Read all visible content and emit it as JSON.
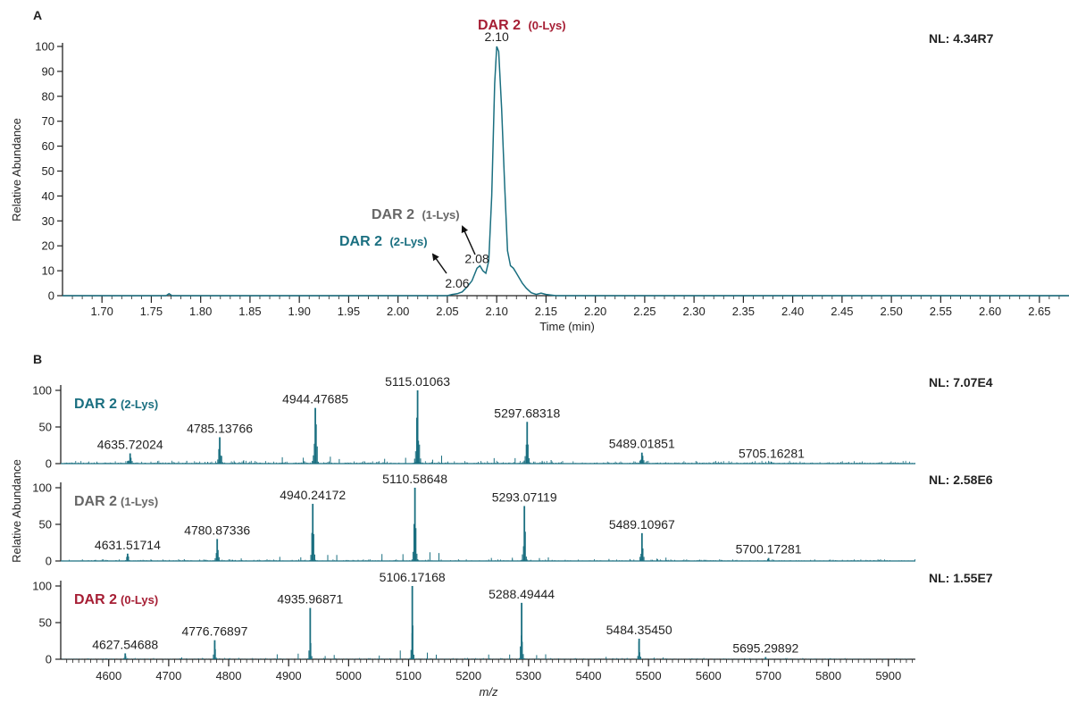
{
  "colors": {
    "teal": "#1a6f80",
    "dark_red": "#a61e34",
    "gray": "#666666",
    "axis": "#222222"
  },
  "panel_a": {
    "label": "A",
    "nl": "NL: 4.34R7",
    "chart_data": {
      "type": "line",
      "xlabel": "Time (min)",
      "ylabel": "Relative Abundance",
      "xlim": [
        1.66,
        2.68
      ],
      "ylim": [
        0,
        100
      ],
      "xticks": [
        "1.70",
        "1.75",
        "1.80",
        "1.85",
        "1.90",
        "1.95",
        "2.00",
        "2.05",
        "2.10",
        "2.15",
        "2.20",
        "2.25",
        "2.30",
        "2.35",
        "2.40",
        "2.45",
        "2.50",
        "2.55",
        "2.60",
        "2.65"
      ],
      "yticks": [
        "0",
        "10",
        "20",
        "30",
        "40",
        "50",
        "60",
        "70",
        "80",
        "90",
        "100"
      ],
      "series": [
        {
          "x": [
            1.66,
            1.765,
            1.768,
            1.771,
            2.04,
            2.05,
            2.055,
            2.06,
            2.065,
            2.07,
            2.075,
            2.08,
            2.083,
            2.086,
            2.089,
            2.092,
            2.095,
            2.098,
            2.1,
            2.102,
            2.105,
            2.108,
            2.111,
            2.114,
            2.117,
            2.12,
            2.123,
            2.126,
            2.13,
            2.135,
            2.14,
            2.145,
            2.15,
            2.16,
            2.68
          ],
          "y": [
            0,
            0,
            0.8,
            0,
            0,
            0,
            0.5,
            0.8,
            1.5,
            3.5,
            6,
            11,
            12,
            10,
            9,
            14,
            40,
            85,
            100,
            98,
            75,
            45,
            18,
            12,
            11,
            9,
            7,
            5,
            3,
            1.2,
            0.5,
            1,
            0.5,
            0,
            0
          ]
        }
      ],
      "peak_labels": [
        {
          "x": 2.1,
          "y": 100,
          "text": "2.10"
        },
        {
          "x": 2.08,
          "y": 11,
          "text": "2.08"
        },
        {
          "x": 2.06,
          "y": 1,
          "text": "2.06"
        }
      ],
      "annotations": [
        {
          "prefix": "DAR 2",
          "suffix": "(0-Lys)",
          "color": "dark_red"
        },
        {
          "prefix": "DAR 2",
          "suffix": "(1-Lys)",
          "color": "gray"
        },
        {
          "prefix": "DAR 2",
          "suffix": "(2-Lys)",
          "color": "teal"
        }
      ]
    }
  },
  "panel_b": {
    "label": "B",
    "ylabel": "Relative Abundance",
    "xlabel": "m/z",
    "xlim": [
      4520,
      5945
    ],
    "xticks": [
      "4600",
      "4700",
      "4800",
      "4900",
      "5000",
      "5100",
      "5200",
      "5300",
      "5400",
      "5500",
      "5600",
      "5700",
      "5800",
      "5900"
    ],
    "yticks": [
      "0",
      "50",
      "100"
    ],
    "chart_data": [
      {
        "type": "bar",
        "name_prefix": "DAR 2",
        "name_suffix": "(2-Lys)",
        "color": "teal",
        "nl": "NL: 7.07E4",
        "peaks": [
          {
            "mz": 4635.72024,
            "y": 14,
            "label": "4635.72024"
          },
          {
            "mz": 4785.13766,
            "y": 36,
            "label": "4785.13766"
          },
          {
            "mz": 4944.47685,
            "y": 76,
            "label": "4944.47685"
          },
          {
            "mz": 5115.01063,
            "y": 100,
            "label": "5115.01063"
          },
          {
            "mz": 5297.68318,
            "y": 57,
            "label": "5297.68318"
          },
          {
            "mz": 5489.01851,
            "y": 15,
            "label": "5489.01851"
          },
          {
            "mz": 5705.16281,
            "y": 2,
            "label": "5705.16281"
          }
        ]
      },
      {
        "type": "bar",
        "name_prefix": "DAR 2",
        "name_suffix": "(1-Lys)",
        "color": "gray",
        "nl": "NL: 2.58E6",
        "peaks": [
          {
            "mz": 4631.51714,
            "y": 10,
            "label": "4631.51714"
          },
          {
            "mz": 4780.87336,
            "y": 30,
            "label": "4780.87336"
          },
          {
            "mz": 4940.24172,
            "y": 78,
            "label": "4940.24172"
          },
          {
            "mz": 5110.58648,
            "y": 100,
            "label": "5110.58648"
          },
          {
            "mz": 5293.07119,
            "y": 75,
            "label": "5293.07119"
          },
          {
            "mz": 5489.10967,
            "y": 38,
            "label": "5489.10967"
          },
          {
            "mz": 5700.17281,
            "y": 4,
            "label": "5700.17281"
          }
        ]
      },
      {
        "type": "bar",
        "name_prefix": "DAR 2",
        "name_suffix": "(0-Lys)",
        "color": "dark_red",
        "nl": "NL: 1.55E7",
        "peaks": [
          {
            "mz": 4627.54688,
            "y": 8,
            "label": "4627.54688"
          },
          {
            "mz": 4776.76897,
            "y": 26,
            "label": "4776.76897"
          },
          {
            "mz": 4935.96871,
            "y": 70,
            "label": "4935.96871"
          },
          {
            "mz": 5106.17168,
            "y": 100,
            "label": "5106.17168"
          },
          {
            "mz": 5288.49444,
            "y": 77,
            "label": "5288.49444"
          },
          {
            "mz": 5484.3545,
            "y": 28,
            "label": "5484.35450"
          },
          {
            "mz": 5695.29892,
            "y": 3,
            "label": "5695.29892"
          }
        ]
      }
    ]
  }
}
